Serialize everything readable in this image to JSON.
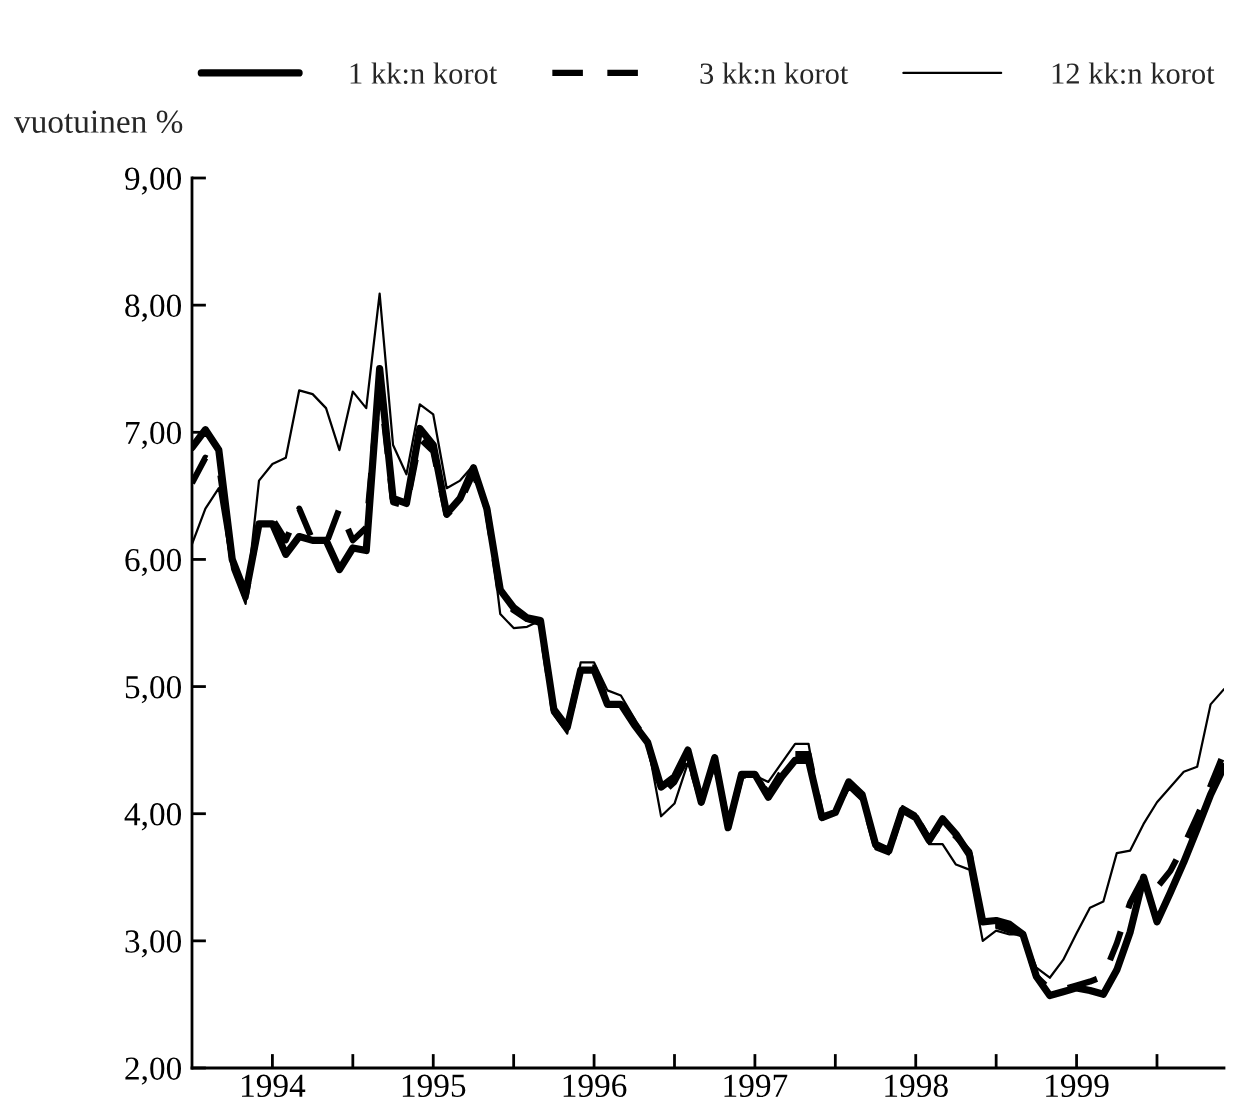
{
  "chart_data": {
    "type": "line",
    "ylabel": "vuotuinen %",
    "x": [
      "1994-01",
      "1994-02",
      "1994-03",
      "1994-04",
      "1994-05",
      "1994-06",
      "1994-07",
      "1994-08",
      "1994-09",
      "1994-10",
      "1994-11",
      "1994-12",
      "1995-01",
      "1995-02",
      "1995-03",
      "1995-04",
      "1995-05",
      "1995-06",
      "1995-07",
      "1995-08",
      "1995-09",
      "1995-10",
      "1995-11",
      "1995-12",
      "1996-01",
      "1996-02",
      "1996-03",
      "1996-04",
      "1996-05",
      "1996-06",
      "1996-07",
      "1996-08",
      "1996-09",
      "1996-10",
      "1996-11",
      "1996-12",
      "1997-01",
      "1997-02",
      "1997-03",
      "1997-04",
      "1997-05",
      "1997-06",
      "1997-07",
      "1997-08",
      "1997-09",
      "1997-10",
      "1997-11",
      "1997-12",
      "1998-01",
      "1998-02",
      "1998-03",
      "1998-04",
      "1998-05",
      "1998-06",
      "1998-07",
      "1998-08",
      "1998-09",
      "1998-10",
      "1998-11",
      "1998-12",
      "1999-01",
      "1999-02",
      "1999-03",
      "1999-04",
      "1999-05",
      "1999-06",
      "1999-07",
      "1999-08",
      "1999-09",
      "1999-10",
      "1999-11",
      "1999-12",
      "2000-01",
      "2000-02",
      "2000-03",
      "2000-04",
      "2000-05",
      "2000-06"
    ],
    "series": [
      {
        "name": "1 kk:n korot",
        "color": "#000000",
        "line_style": "solid",
        "values": [
          6.88,
          7.02,
          6.86,
          6.0,
          5.73,
          6.28,
          6.28,
          6.04,
          6.18,
          6.15,
          6.15,
          5.92,
          6.09,
          6.07,
          7.5,
          6.48,
          6.44,
          7.03,
          6.9,
          6.36,
          6.48,
          6.72,
          6.4,
          5.76,
          5.62,
          5.54,
          5.52,
          4.82,
          4.68,
          5.13,
          5.13,
          4.86,
          4.86,
          4.7,
          4.56,
          4.21,
          4.29,
          4.5,
          4.09,
          4.44,
          3.89,
          4.31,
          4.31,
          4.13,
          4.29,
          4.42,
          4.42,
          3.97,
          4.01,
          4.25,
          4.15,
          3.76,
          3.71,
          4.03,
          3.97,
          3.79,
          3.96,
          3.84,
          3.68,
          3.15,
          3.16,
          3.13,
          3.05,
          2.72,
          2.57,
          2.6,
          2.63,
          2.61,
          2.58,
          2.77,
          3.07,
          3.5,
          3.15,
          3.38,
          3.62,
          3.88,
          4.15,
          4.37
        ]
      },
      {
        "name": "3 kk:n korot",
        "color": "#000000",
        "line_style": "dashed",
        "values": [
          6.6,
          6.8,
          6.75,
          6.0,
          5.7,
          6.3,
          6.32,
          6.15,
          6.4,
          6.15,
          6.12,
          6.4,
          6.15,
          6.25,
          7.4,
          6.45,
          6.42,
          6.95,
          6.85,
          6.35,
          6.45,
          6.68,
          6.4,
          5.7,
          5.6,
          5.53,
          5.5,
          4.8,
          4.66,
          5.15,
          5.15,
          4.88,
          4.88,
          4.72,
          4.57,
          4.15,
          4.25,
          4.45,
          4.1,
          4.42,
          3.9,
          4.3,
          4.3,
          4.16,
          4.33,
          4.47,
          4.47,
          3.97,
          4.02,
          4.23,
          4.13,
          3.75,
          3.7,
          4.03,
          3.98,
          3.8,
          3.93,
          3.82,
          3.7,
          3.12,
          3.12,
          3.08,
          3.05,
          2.72,
          2.62,
          2.62,
          2.65,
          2.68,
          2.72,
          2.98,
          3.3,
          3.5,
          3.42,
          3.55,
          3.75,
          3.98,
          4.22,
          4.48
        ]
      },
      {
        "name": "12 kk:n korot",
        "color": "#000000",
        "line_style": "solid",
        "values": [
          6.12,
          6.4,
          6.56,
          5.92,
          5.65,
          6.62,
          6.75,
          6.8,
          7.33,
          7.3,
          7.19,
          6.86,
          7.32,
          7.19,
          8.09,
          6.9,
          6.67,
          7.22,
          7.14,
          6.56,
          6.62,
          6.74,
          6.43,
          5.57,
          5.46,
          5.47,
          5.52,
          4.78,
          4.63,
          5.19,
          5.19,
          4.97,
          4.93,
          4.75,
          4.55,
          3.98,
          4.08,
          4.4,
          4.1,
          4.46,
          3.9,
          4.32,
          4.3,
          4.25,
          4.4,
          4.55,
          4.55,
          3.95,
          4.0,
          4.2,
          4.1,
          3.72,
          3.68,
          4.06,
          4.0,
          3.76,
          3.76,
          3.6,
          3.56,
          3.0,
          3.08,
          3.05,
          3.05,
          2.79,
          2.71,
          2.85,
          3.06,
          3.26,
          3.31,
          3.69,
          3.71,
          3.92,
          4.09,
          4.21,
          4.33,
          4.37,
          4.86,
          4.98
        ]
      }
    ],
    "xlim": [
      "1994-01",
      "2000-06"
    ],
    "xticks": [
      {
        "value": "1994-07",
        "label": "1994"
      },
      {
        "value": "1995-01",
        "label": null
      },
      {
        "value": "1995-07",
        "label": "1995"
      },
      {
        "value": "1996-01",
        "label": null
      },
      {
        "value": "1996-07",
        "label": "1996"
      },
      {
        "value": "1997-01",
        "label": null
      },
      {
        "value": "1997-07",
        "label": "1997"
      },
      {
        "value": "1998-01",
        "label": null
      },
      {
        "value": "1998-07",
        "label": "1998"
      },
      {
        "value": "1999-01",
        "label": null
      },
      {
        "value": "1999-07",
        "label": "1999"
      },
      {
        "value": "2000-01",
        "label": null
      }
    ],
    "ylim": [
      2,
      9
    ],
    "yticks": [
      {
        "value": 2,
        "label": "2,00"
      },
      {
        "value": 3,
        "label": "3,00"
      },
      {
        "value": 4,
        "label": "4,00"
      },
      {
        "value": 5,
        "label": "5,00"
      },
      {
        "value": 6,
        "label": "6,00"
      },
      {
        "value": 7,
        "label": "7,00"
      },
      {
        "value": 8,
        "label": "8,00"
      },
      {
        "value": 9,
        "label": "9,00"
      }
    ],
    "grid": false,
    "legend": "top",
    "marker": "none"
  }
}
